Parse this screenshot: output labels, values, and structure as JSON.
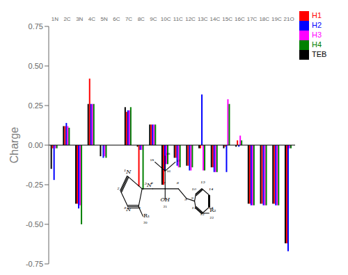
{
  "chart_data": {
    "type": "bar",
    "categories": [
      "1N",
      "2C",
      "3N",
      "4C",
      "5N",
      "6C",
      "7C",
      "8C",
      "9C",
      "10C",
      "11C",
      "12C",
      "13C",
      "14C",
      "15C",
      "16C",
      "17C",
      "18C",
      "19C",
      "21O"
    ],
    "series": [
      {
        "name": "TEB",
        "color": "#000000",
        "values": [
          -0.15,
          0.12,
          -0.37,
          0.26,
          -0.07,
          0.0,
          0.24,
          -0.01,
          0.13,
          -0.25,
          -0.08,
          -0.13,
          -0.02,
          -0.14,
          -0.02,
          -0.01,
          -0.37,
          -0.37,
          -0.37,
          -0.62
        ]
      },
      {
        "name": "H1",
        "color": "#ff0000",
        "values": [
          -0.02,
          0.12,
          -0.37,
          0.42,
          0.0,
          0.0,
          0.21,
          -0.26,
          0.13,
          -0.25,
          -0.08,
          -0.13,
          -0.02,
          -0.14,
          -0.01,
          0.03,
          -0.37,
          -0.37,
          -0.37,
          -0.62
        ]
      },
      {
        "name": "H2",
        "color": "#0000ff",
        "values": [
          -0.22,
          0.14,
          -0.4,
          0.26,
          -0.08,
          0.0,
          0.22,
          -0.03,
          0.13,
          -0.16,
          -0.13,
          -0.16,
          0.32,
          -0.17,
          -0.17,
          -0.01,
          -0.38,
          -0.38,
          -0.38,
          -0.67
        ]
      },
      {
        "name": "H3",
        "color": "#ff00ff",
        "values": [
          -0.02,
          0.12,
          -0.38,
          0.26,
          -0.07,
          0.0,
          0.22,
          -0.03,
          0.13,
          -0.12,
          -0.14,
          -0.16,
          -0.16,
          -0.17,
          0.29,
          0.06,
          -0.38,
          -0.38,
          -0.38,
          -0.02
        ]
      },
      {
        "name": "H4",
        "color": "#008000",
        "values": [
          -0.02,
          0.11,
          -0.5,
          0.26,
          -0.08,
          0.0,
          0.24,
          -0.28,
          0.13,
          -0.12,
          -0.14,
          -0.14,
          -0.16,
          -0.17,
          0.26,
          0.03,
          -0.38,
          -0.38,
          -0.38,
          -0.02
        ]
      }
    ],
    "ylabel": "Charge",
    "ylim": [
      -0.75,
      0.75
    ],
    "yticks": [
      -0.75,
      {
        "value": -0.5,
        "label": "-0.50"
      },
      -0.25,
      {
        "value": 0,
        "label": "0.00"
      },
      0.25,
      {
        "value": 0.5,
        "label": "0.50"
      },
      0.75
    ],
    "grid": false,
    "legend": "upper right",
    "annotations": [
      "¹N",
      "²",
      "³N",
      "⁴",
      "⁵N",
      "R₁",
      "₂₀",
      "⁶",
      "⁷",
      "OH",
      "₂₁",
      "₁₆",
      "₁₈",
      "₁₇",
      "₁₉",
      "⁸",
      "⁹",
      "¹⁰",
      "¹¹",
      "¹²",
      "¹³",
      "¹⁴",
      "¹⁵",
      "⁹",
      "R₂",
      "₂₂"
    ]
  }
}
